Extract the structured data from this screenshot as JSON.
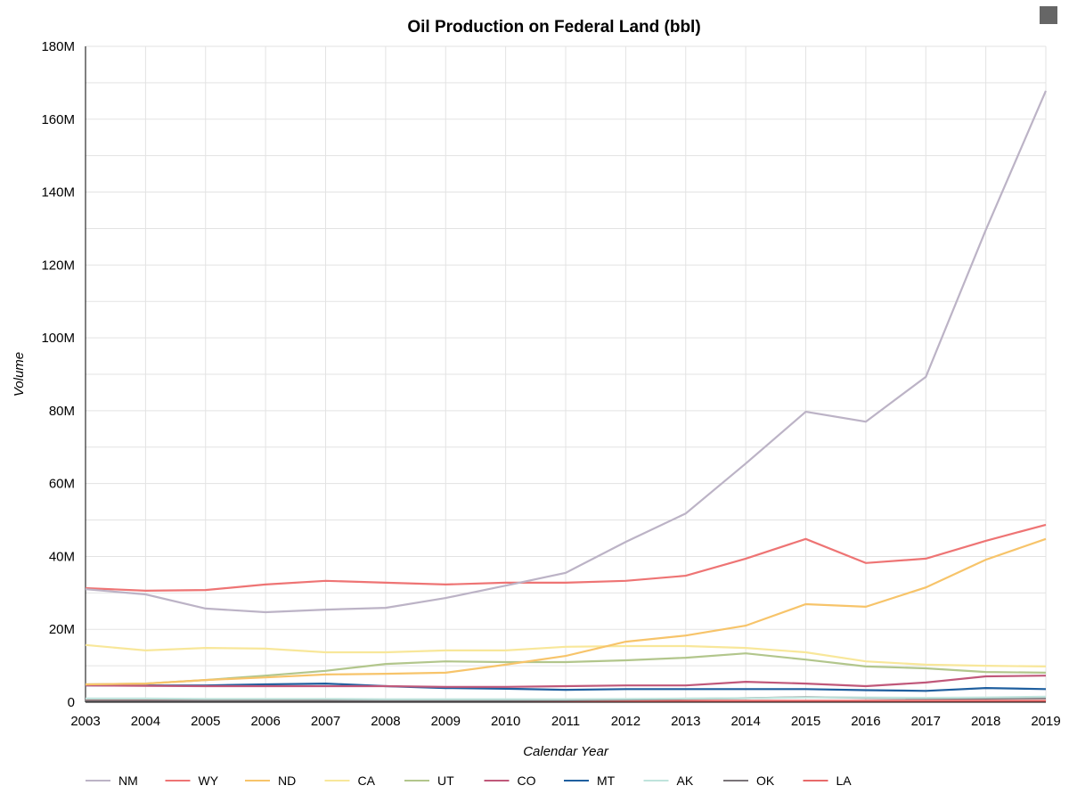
{
  "chart_data": {
    "type": "line",
    "title": "Oil Production on Federal Land (bbl)",
    "xlabel": "Calendar Year",
    "ylabel": "Volume",
    "ylim": [
      0,
      180000000
    ],
    "yticks": [
      0,
      20000000,
      40000000,
      60000000,
      80000000,
      100000000,
      120000000,
      140000000,
      160000000,
      180000000
    ],
    "ytick_labels": [
      "0",
      "20M",
      "40M",
      "60M",
      "80M",
      "100M",
      "120M",
      "140M",
      "160M",
      "180M"
    ],
    "grid": true,
    "legend": "bottom",
    "x": [
      2003,
      2004,
      2005,
      2006,
      2007,
      2008,
      2009,
      2010,
      2011,
      2012,
      2013,
      2014,
      2015,
      2016,
      2017,
      2018,
      2019
    ],
    "series": [
      {
        "name": "NM",
        "color": "#bcb3c6",
        "values": [
          31.0,
          29.6,
          25.7,
          24.7,
          25.4,
          25.9,
          28.6,
          32.0,
          35.5,
          44.0,
          51.8,
          65.5,
          79.7,
          77.0,
          89.3,
          129.6,
          167.8
        ]
      },
      {
        "name": "WY",
        "color": "#ee7474",
        "values": [
          31.3,
          30.6,
          30.8,
          32.3,
          33.3,
          32.8,
          32.3,
          32.8,
          32.8,
          33.3,
          34.7,
          39.4,
          44.8,
          38.2,
          39.4,
          44.3,
          48.7
        ]
      },
      {
        "name": "ND",
        "color": "#f7c46a",
        "values": [
          4.9,
          5.1,
          6.1,
          6.8,
          7.6,
          7.8,
          8.1,
          10.3,
          12.7,
          16.6,
          18.3,
          21.0,
          26.9,
          26.2,
          31.5,
          39.1,
          44.8
        ]
      },
      {
        "name": "CA",
        "color": "#f8e79a",
        "values": [
          15.7,
          14.2,
          14.9,
          14.7,
          13.7,
          13.7,
          14.2,
          14.2,
          15.2,
          15.4,
          15.4,
          14.9,
          13.7,
          11.2,
          10.3,
          10.0,
          9.8
        ]
      },
      {
        "name": "UT",
        "color": "#b2c68c",
        "values": [
          4.9,
          5.1,
          6.1,
          7.3,
          8.6,
          10.5,
          11.2,
          11.0,
          11.0,
          11.5,
          12.2,
          13.4,
          11.7,
          9.8,
          9.3,
          8.3,
          8.1
        ]
      },
      {
        "name": "CO",
        "color": "#c0587a",
        "values": [
          4.6,
          4.5,
          4.4,
          4.4,
          4.4,
          4.4,
          4.2,
          4.2,
          4.4,
          4.6,
          4.6,
          5.6,
          5.1,
          4.4,
          5.4,
          7.1,
          7.3
        ]
      },
      {
        "name": "MT",
        "color": "#1f5f9f",
        "values": [
          4.6,
          4.6,
          4.6,
          4.9,
          5.1,
          4.4,
          3.9,
          3.7,
          3.4,
          3.6,
          3.6,
          3.6,
          3.6,
          3.3,
          3.1,
          3.9,
          3.6
        ]
      },
      {
        "name": "AK",
        "color": "#bfe3dc",
        "values": [
          1.0,
          1.0,
          0.9,
          0.9,
          0.9,
          0.8,
          0.8,
          0.8,
          0.8,
          0.9,
          1.0,
          1.1,
          1.3,
          1.3,
          1.2,
          1.3,
          1.5
        ]
      },
      {
        "name": "OK",
        "color": "#7a7478",
        "values": [
          0.4,
          0.4,
          0.4,
          0.4,
          0.4,
          0.4,
          0.4,
          0.4,
          0.5,
          0.7,
          0.9,
          1.1,
          1.4,
          1.2,
          1.0,
          1.0,
          1.1
        ]
      },
      {
        "name": "LA",
        "color": "#e86a6a",
        "values": [
          0.6,
          0.6,
          0.5,
          0.5,
          0.5,
          0.5,
          0.4,
          0.4,
          0.4,
          0.4,
          0.4,
          0.4,
          0.4,
          0.4,
          0.4,
          0.4,
          0.4
        ]
      }
    ],
    "value_unit_note": ""
  }
}
